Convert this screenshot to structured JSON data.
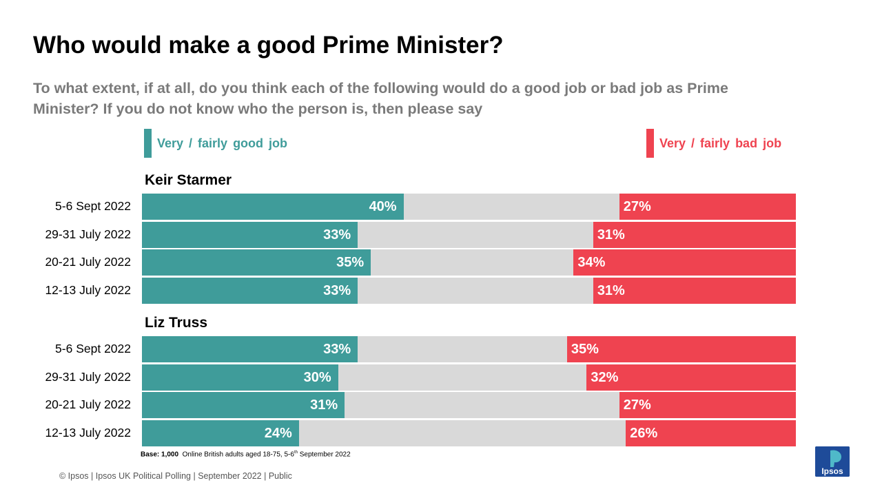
{
  "header": {
    "title": "Who would make a good Prime Minister?",
    "subtitle": "To what extent, if at all, do you think each of the following would do a good job or bad job as Prime Minister? If you do not know who the person is, then please say"
  },
  "colors": {
    "good": "#3f9c9a",
    "bad": "#ef4350",
    "neutral": "#d9d9d9"
  },
  "chart_data": {
    "type": "bar",
    "orientation": "horizontal",
    "stacked": true,
    "title": "Who would make a good Prime Minister?",
    "legend": [
      {
        "key": "good",
        "label": "Very / fairly good job"
      },
      {
        "key": "bad",
        "label": "Very / fairly bad job"
      }
    ],
    "xlim": [
      0,
      100
    ],
    "unit": "%",
    "groups": [
      {
        "name": "Keir Starmer",
        "rows": [
          {
            "label": "5-6 Sept 2022",
            "good": 40,
            "bad": 27
          },
          {
            "label": "29-31 July 2022",
            "good": 33,
            "bad": 31
          },
          {
            "label": "20-21 July 2022",
            "good": 35,
            "bad": 34
          },
          {
            "label": "12-13 July 2022",
            "good": 33,
            "bad": 31
          }
        ]
      },
      {
        "name": "Liz Truss",
        "rows": [
          {
            "label": "5-6 Sept 2022",
            "good": 33,
            "bad": 35
          },
          {
            "label": "29-31 July 2022",
            "good": 30,
            "bad": 32
          },
          {
            "label": "20-21 July 2022",
            "good": 31,
            "bad": 27
          },
          {
            "label": "12-13 July 2022",
            "good": 24,
            "bad": 26
          }
        ]
      }
    ]
  },
  "base_note": {
    "label": "Base: 1,000",
    "text_before": "Online British adults aged 18-75, 5-6",
    "superscript": "th",
    "text_after": " September 2022"
  },
  "footer": {
    "text": "© Ipsos | Ipsos UK Political Polling | September 2022 | Public"
  },
  "logo": {
    "text": "Ipsos"
  }
}
